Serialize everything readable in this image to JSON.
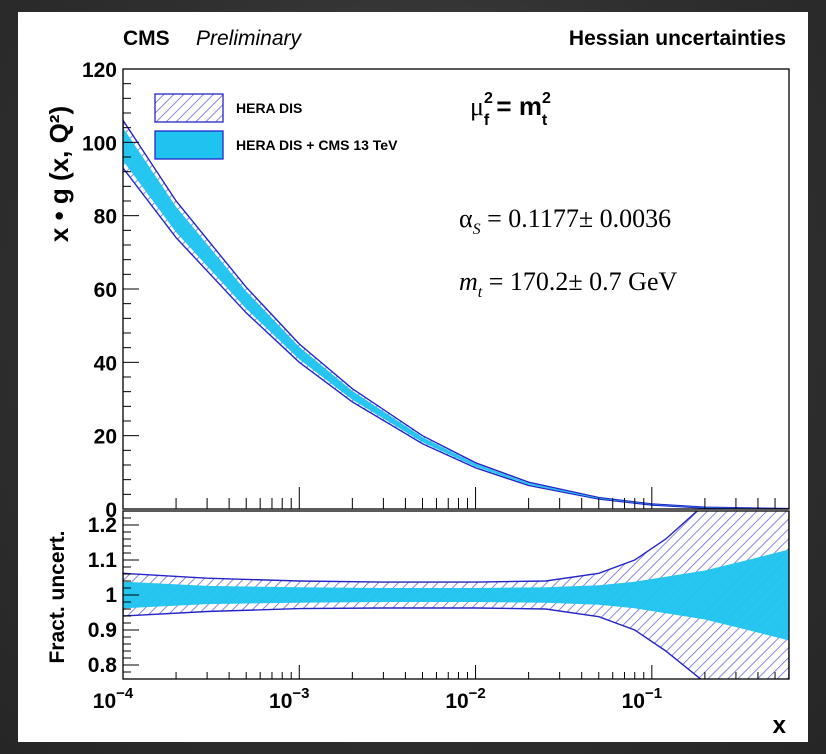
{
  "header": {
    "cms": "CMS",
    "preliminary": "Preliminary",
    "method": "Hessian uncertainties"
  },
  "annotations": {
    "scale_mu": "μ",
    "scale_mu_sup": "2",
    "scale_mu_sub": "f",
    "scale_eq": " = m",
    "scale_m_sup": "2",
    "scale_m_sub": "t",
    "alpha": "α",
    "alpha_sub": "S",
    "alpha_value": " = 0.1177± 0.0036",
    "mt": "m",
    "mt_sub": "t",
    "mt_value": " =  170.2± 0.7 GeV"
  },
  "colors": {
    "hera_line": "#2525c8",
    "hera_hatch": "#5a5ad8",
    "cms_fill": "#1ec4ef",
    "axis": "#000000"
  },
  "chart_data": [
    {
      "type": "area",
      "panel": "top",
      "ylabel": "x • g (x, Q²)",
      "ylim": [
        0,
        120
      ],
      "xlim": [
        0.0001,
        0.6
      ],
      "xscale": "log",
      "yticks": [
        "0",
        "20",
        "40",
        "60",
        "80",
        "100",
        "120"
      ],
      "legend_position": "top-left",
      "x": [
        0.0001,
        0.0002,
        0.0005,
        0.001,
        0.002,
        0.005,
        0.01,
        0.02,
        0.05,
        0.1,
        0.2,
        0.6
      ],
      "series": [
        {
          "name": "HERA DIS",
          "style": "hatched band",
          "lower": [
            93.0,
            74.0,
            53.5,
            40.0,
            29.2,
            17.8,
            11.2,
            6.4,
            2.7,
            1.1,
            0.25,
            0.0
          ],
          "upper": [
            106.0,
            84.0,
            60.5,
            45.0,
            32.8,
            20.0,
            12.6,
            7.3,
            3.1,
            1.4,
            0.5,
            0.1
          ]
        },
        {
          "name": "HERA DIS + CMS 13 TeV",
          "style": "filled band",
          "lower": [
            95.0,
            75.5,
            54.6,
            40.8,
            29.8,
            18.2,
            11.5,
            6.6,
            2.8,
            1.2,
            0.3,
            0.0
          ],
          "upper": [
            104.0,
            82.4,
            59.4,
            44.2,
            32.2,
            19.6,
            12.3,
            7.1,
            3.0,
            1.3,
            0.4,
            0.05
          ]
        }
      ]
    },
    {
      "type": "area",
      "panel": "bottom",
      "ylabel": "Fract. uncert.",
      "xlabel": "x",
      "ylim": [
        0.76,
        1.24
      ],
      "xlim": [
        0.0001,
        0.6
      ],
      "xscale": "log",
      "yticks": [
        "0.8",
        "0.9",
        "1",
        "1.1",
        "1.2"
      ],
      "xticks": [
        {
          "base": "10",
          "exp": "−4",
          "value": 0.0001
        },
        {
          "base": "10",
          "exp": "−3",
          "value": 0.001
        },
        {
          "base": "10",
          "exp": "−2",
          "value": 0.01
        },
        {
          "base": "10",
          "exp": "−1",
          "value": 0.1
        }
      ],
      "x": [
        0.0001,
        0.0003,
        0.001,
        0.003,
        0.01,
        0.025,
        0.05,
        0.08,
        0.12,
        0.2,
        0.35,
        0.6
      ],
      "series": [
        {
          "name": "HERA DIS",
          "style": "hatched band",
          "lower": [
            0.94,
            0.953,
            0.961,
            0.963,
            0.963,
            0.96,
            0.938,
            0.9,
            0.84,
            0.75,
            0.7,
            0.7
          ],
          "upper": [
            1.062,
            1.048,
            1.04,
            1.037,
            1.037,
            1.04,
            1.062,
            1.1,
            1.16,
            1.26,
            1.3,
            1.3
          ]
        },
        {
          "name": "HERA DIS + CMS 13 TeV",
          "style": "filled band",
          "lower": [
            0.962,
            0.974,
            0.978,
            0.98,
            0.98,
            0.978,
            0.972,
            0.962,
            0.948,
            0.93,
            0.9,
            0.87
          ],
          "upper": [
            1.038,
            1.026,
            1.022,
            1.02,
            1.02,
            1.022,
            1.028,
            1.038,
            1.052,
            1.07,
            1.1,
            1.13
          ]
        }
      ]
    }
  ]
}
